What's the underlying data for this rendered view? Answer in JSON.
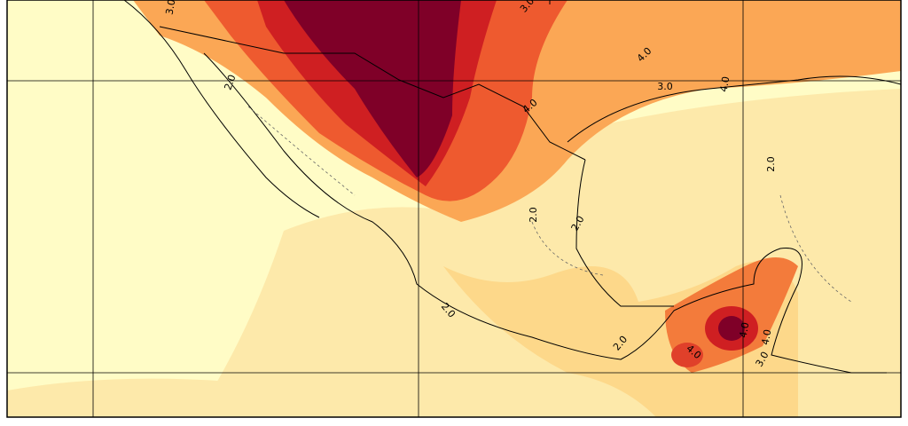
{
  "map": {
    "contour_labels": [
      "3.0",
      "3.0",
      "4.0",
      "3.0",
      "4.0",
      "2.0",
      "4.0",
      "2.0",
      "2.0",
      "2.0",
      "2.0",
      "2.0",
      "4.0",
      "4.0",
      "4.0",
      "3.0"
    ]
  }
}
